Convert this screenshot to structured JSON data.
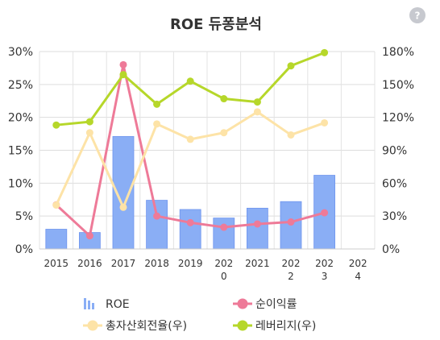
{
  "chart_data": {
    "type": "bar",
    "title": "ROE 듀퐁분석",
    "help_glyph": "?",
    "categories": [
      "2015",
      "2016",
      "2017",
      "2018",
      "2019",
      "202\n0",
      "2021",
      "202\n2",
      "202\n3",
      "202\n4"
    ],
    "ylim_left": [
      0,
      30
    ],
    "ylim_right": [
      0,
      180
    ],
    "yticks_left": [
      "0%",
      "5%",
      "10%",
      "15%",
      "20%",
      "25%",
      "30%"
    ],
    "yticks_right": [
      "0%",
      "30%",
      "60%",
      "90%",
      "120%",
      "150%",
      "180%"
    ],
    "grid": true,
    "legend_position": "bottom",
    "series": [
      {
        "name": "ROE",
        "kind": "bar",
        "axis": "left",
        "color": "#8aaef5",
        "values": [
          3.0,
          2.5,
          17.1,
          7.4,
          6.0,
          4.7,
          6.2,
          7.2,
          11.2,
          null
        ]
      },
      {
        "name": "순이익률",
        "kind": "line",
        "axis": "left",
        "color": "#ee7a98",
        "values": [
          6.7,
          2.0,
          28.0,
          5.0,
          4.0,
          3.3,
          3.8,
          4.1,
          5.5,
          null
        ]
      },
      {
        "name": "총자산회전율(우)",
        "kind": "line",
        "axis": "right",
        "color": "#fde3a7",
        "values": [
          40,
          106,
          38,
          114,
          100,
          106,
          125,
          104,
          115,
          null
        ]
      },
      {
        "name": "레버리지(우)",
        "kind": "line",
        "axis": "right",
        "color": "#b6d72a",
        "values": [
          113,
          116,
          159,
          132,
          153,
          137,
          134,
          167,
          179,
          null
        ]
      }
    ]
  }
}
